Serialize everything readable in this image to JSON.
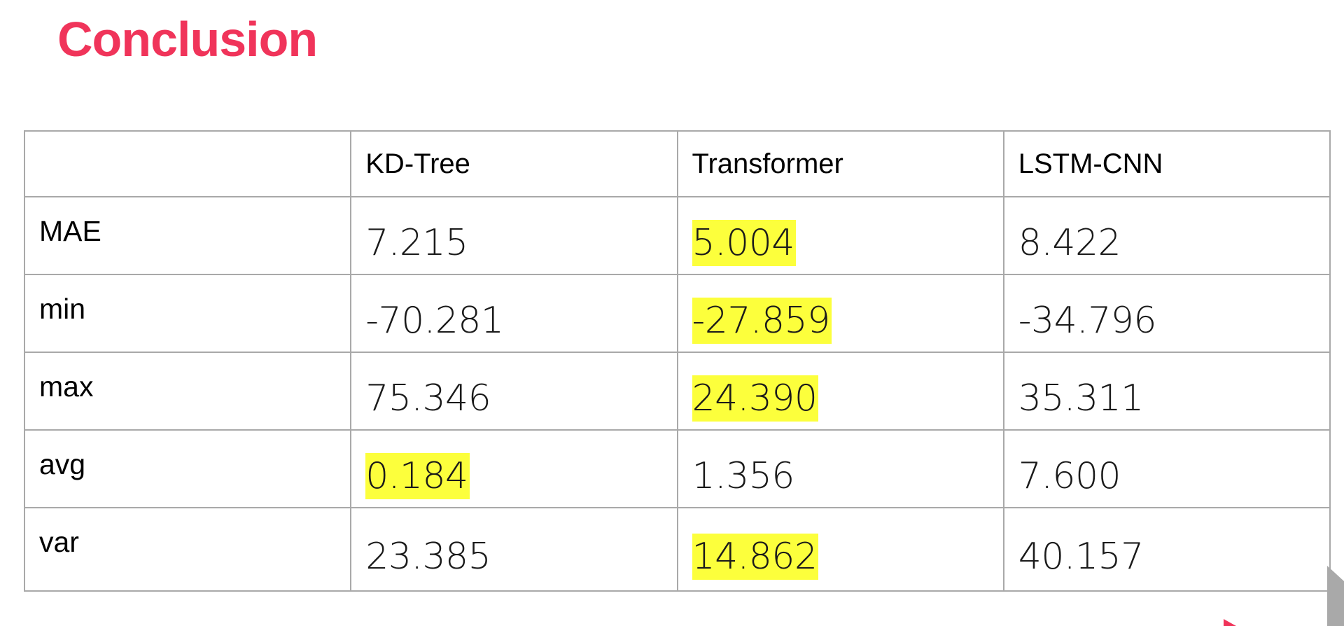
{
  "slide": {
    "title": "Conclusion",
    "accent_color": "#f0345a",
    "highlight_color": "#fcff3c"
  },
  "table": {
    "columns": [
      "",
      "KD-Tree",
      "Transformer",
      "LSTM-CNN"
    ],
    "rows": [
      {
        "label": "MAE",
        "values": [
          "7.215",
          "5.004",
          "8.422"
        ],
        "highlighted": [
          false,
          true,
          false
        ]
      },
      {
        "label": "min",
        "values": [
          "-70.281",
          "-27.859",
          "-34.796"
        ],
        "highlighted": [
          false,
          true,
          false
        ]
      },
      {
        "label": "max",
        "values": [
          "75.346",
          "24.390",
          "35.311"
        ],
        "highlighted": [
          false,
          true,
          false
        ]
      },
      {
        "label": "avg",
        "values": [
          "0.184",
          "1.356",
          "7.600"
        ],
        "highlighted": [
          true,
          false,
          false
        ]
      },
      {
        "label": "var",
        "values": [
          "23.385",
          "14.862",
          "40.157"
        ],
        "highlighted": [
          false,
          true,
          false
        ]
      }
    ]
  }
}
